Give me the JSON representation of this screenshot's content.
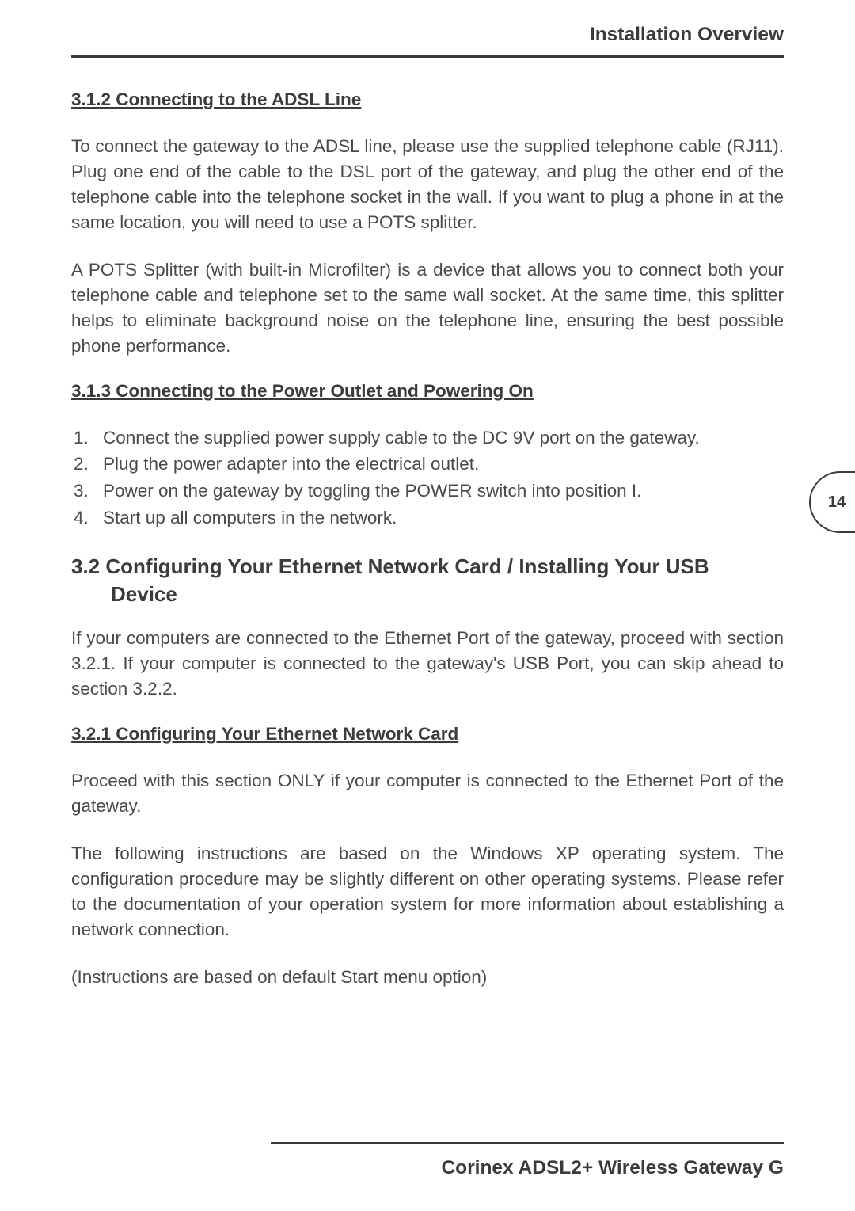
{
  "header": {
    "title": "Installation Overview"
  },
  "sections": {
    "s312": {
      "heading": "3.1.2  Connecting to the ADSL Line",
      "para1": "To connect the gateway to the ADSL line, please use the supplied telephone cable (RJ11). Plug one end of the cable to the DSL port of the gateway, and plug the other end of the telephone cable into the telephone socket in the wall. If you want to plug a phone in at the same location, you will need to use a POTS splitter.",
      "para2": "A POTS Splitter (with built-in Microfilter) is a device that allows you to connect both your telephone cable and telephone set to the same wall socket. At the same time, this splitter helps to eliminate background noise on the telephone line, ensuring the best possible phone performance."
    },
    "s313": {
      "heading": "3.1.3  Connecting to the Power Outlet and Powering On",
      "items": [
        "Connect the supplied power supply cable to the DC 9V port on the gateway.",
        "Plug the power adapter into the electrical outlet.",
        "Power on the gateway by toggling the POWER switch into position I.",
        "Start up all computers in the network."
      ]
    },
    "s32": {
      "heading": "3.2 Configuring Your Ethernet Network Card / Installing Your USB Device",
      "para1": "If your computers are connected to the Ethernet Port of the gateway, proceed with section 3.2.1. If your computer is connected to the gateway's USB Port, you can skip ahead to section 3.2.2."
    },
    "s321": {
      "heading": "3.2.1 Configuring Your Ethernet Network Card",
      "para1": "Proceed with this section ONLY if your computer is connected to the Ethernet Port of the gateway.",
      "para2": "The following instructions are based on the Windows XP operating system. The configuration procedure may be slightly different on other operating systems. Please refer to the documentation of your operation system for more information about establishing a network connection.",
      "para3": "(Instructions are based on default Start menu option)"
    }
  },
  "page_number": "14",
  "footer": {
    "text": "Corinex ADSL2+ Wireless Gateway G"
  },
  "styles": {
    "text_color": "#4a4a4a",
    "heading_color": "#3b3b3b",
    "border_color": "#3b3b3b",
    "background_color": "#ffffff",
    "body_fontsize": 22.5,
    "heading_fontsize": 22.5,
    "main_heading_fontsize": 26,
    "header_fontsize": 24.5,
    "footer_fontsize": 24.5
  }
}
